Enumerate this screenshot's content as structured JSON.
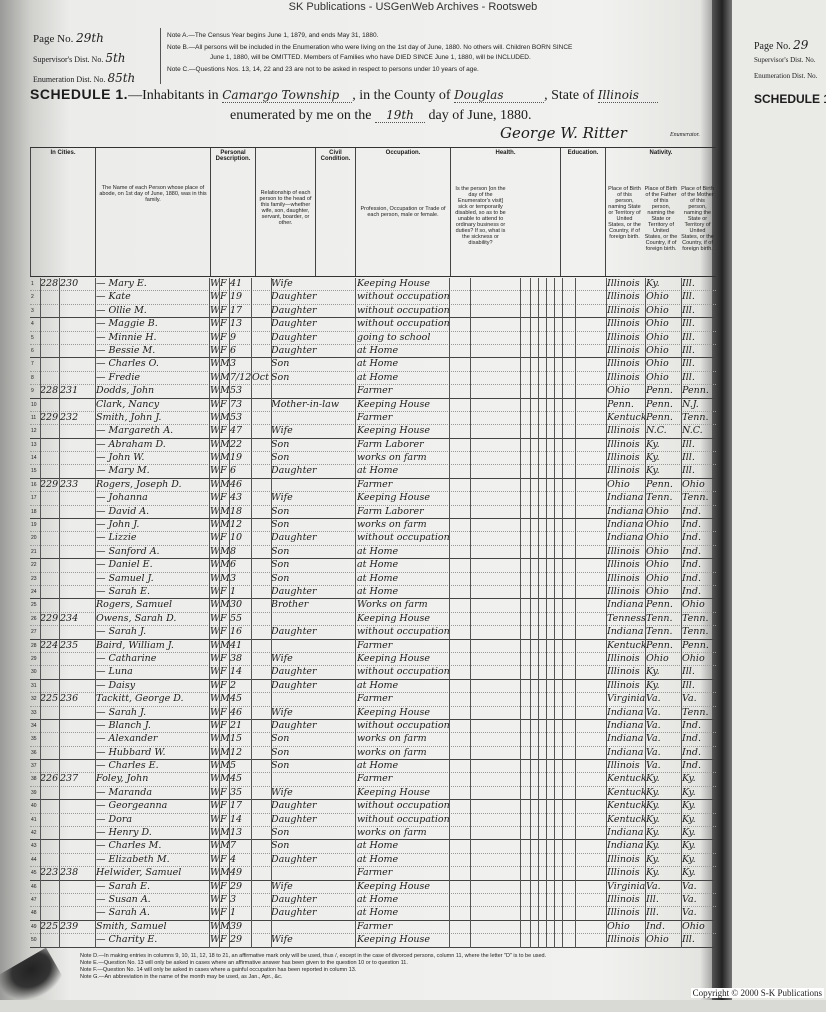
{
  "watermark": "SK Publications - USGenWeb Archives - Rootsweb",
  "header": {
    "page_label": "Page No.",
    "page_value": "29th",
    "supervisor_label": "Supervisor's Dist. No.",
    "supervisor_value": "5th",
    "enumeration_label": "Enumeration Dist. No.",
    "enumeration_value": "85th",
    "note_a": "Note A.—The Census Year begins June 1, 1879, and ends May 31, 1880.",
    "note_b1": "Note B.—All persons will be included in the Enumeration who were living on the 1st day of June, 1880. No others will. Children BORN SINCE",
    "note_b2": "June 1, 1880, will be OMITTED. Members of Families who have DIED SINCE June 1, 1880, will be INCLUDED.",
    "note_c": "Note C.—Questions Nos. 13, 14, 22 and 23 are not to be asked in respect to persons under 10 years of age.",
    "schedule": "SCHEDULE 1.",
    "inhabitants_in": "—Inhabitants in",
    "township": "Camargo Township",
    "county_label": ", in the County of",
    "county": "Douglas",
    "state_label": ", State of",
    "state": "Illinois",
    "enumerated_label": "enumerated by me on the",
    "day": "19th",
    "day_suffix": "day of June, 1880.",
    "enumerator": "George W. Ritter",
    "enumerator_label": "Enumerator."
  },
  "columns": {
    "in_cities": "In Cities.",
    "name": "The Name of each Person whose place of abode, on 1st day of June, 1880, was in this family.",
    "personal": "Personal Description.",
    "relationship": "Relationship of each person to the head of this family—whether wife, son, daughter, servant, boarder, or other.",
    "civil": "Civil Condition.",
    "occupation_group": "Occupation.",
    "occupation": "Profession, Occupation or Trade of each person, male or female.",
    "health": "Health.",
    "health_q": "Is the person [on the day of the Enumerator's visit] sick or temporarily disabled, so as to be unable to attend to ordinary business or duties? If so, what is the sickness or disability?",
    "education": "Education.",
    "nativity": "Nativity.",
    "birthplace": "Place of Birth of this person, naming State or Territory of United States, or the Country, if of foreign birth.",
    "father_birth": "Place of Birth of the Father of this person, naming the State or Territory of United States, or the Country, if of foreign birth.",
    "mother_birth": "Place of Birth of the Mother of this person, naming the State or Territory of United States, or the Country, if of foreign birth."
  },
  "rows": [
    {
      "n": "1",
      "dw": "228",
      "fam": "230",
      "name": "— Mary E.",
      "c": "W",
      "s": "F",
      "a": "41",
      "rel": "Wife",
      "occ": "Keeping House",
      "bp": "Illinois",
      "fb": "Ky.",
      "mb": "Ill."
    },
    {
      "n": "2",
      "dw": "",
      "fam": "",
      "name": "— Kate",
      "c": "W",
      "s": "F",
      "a": "19",
      "rel": "Daughter",
      "occ": "without occupation",
      "bp": "Illinois",
      "fb": "Ohio",
      "mb": "Ill."
    },
    {
      "n": "3",
      "dw": "",
      "fam": "",
      "name": "— Ollie M.",
      "c": "W",
      "s": "F",
      "a": "17",
      "rel": "Daughter",
      "occ": "without occupation",
      "bp": "Illinois",
      "fb": "Ohio",
      "mb": "Ill.",
      "g": true
    },
    {
      "n": "4",
      "dw": "",
      "fam": "",
      "name": "— Maggie B.",
      "c": "W",
      "s": "F",
      "a": "13",
      "rel": "Daughter",
      "occ": "without occupation",
      "bp": "Illinois",
      "fb": "Ohio",
      "mb": "Ill."
    },
    {
      "n": "5",
      "dw": "",
      "fam": "",
      "name": "— Minnie H.",
      "c": "W",
      "s": "F",
      "a": "9",
      "rel": "Daughter",
      "occ": "going to school",
      "bp": "Illinois",
      "fb": "Ohio",
      "mb": "Ill."
    },
    {
      "n": "6",
      "dw": "",
      "fam": "",
      "name": "— Bessie M.",
      "c": "W",
      "s": "F",
      "a": "6",
      "rel": "Daughter",
      "occ": "at Home",
      "bp": "Illinois",
      "fb": "Ohio",
      "mb": "Ill.",
      "g": true
    },
    {
      "n": "7",
      "dw": "",
      "fam": "",
      "name": "— Charles O.",
      "c": "W",
      "s": "M",
      "a": "3",
      "rel": "Son",
      "occ": "at Home",
      "bp": "Illinois",
      "fb": "Ohio",
      "mb": "Ill."
    },
    {
      "n": "8",
      "dw": "",
      "fam": "",
      "name": "— Fredie",
      "c": "W",
      "s": "M",
      "a": "7/12",
      "m": "Oct",
      "rel": "Son",
      "occ": "at Home",
      "bp": "Illinois",
      "fb": "Ohio",
      "mb": "Ill."
    },
    {
      "n": "9",
      "dw": "228",
      "fam": "231",
      "name": "Dodds, John",
      "c": "W",
      "s": "M",
      "a": "53",
      "rel": "",
      "occ": "Farmer",
      "bp": "Ohio",
      "fb": "Penn.",
      "mb": "Penn.",
      "g": true
    },
    {
      "n": "10",
      "dw": "",
      "fam": "",
      "name": "Clark, Nancy",
      "c": "W",
      "s": "F",
      "a": "73",
      "rel": "Mother-in-law",
      "occ": "Keeping House",
      "bp": "Penn.",
      "fb": "Penn.",
      "mb": "N.J."
    },
    {
      "n": "11",
      "dw": "229",
      "fam": "232",
      "name": "Smith, John J.",
      "c": "W",
      "s": "M",
      "a": "53",
      "rel": "",
      "occ": "Farmer",
      "bp": "Kentucky",
      "fb": "Penn.",
      "mb": "Tenn."
    },
    {
      "n": "12",
      "dw": "",
      "fam": "",
      "name": "— Margareth A.",
      "c": "W",
      "s": "F",
      "a": "47",
      "rel": "Wife",
      "occ": "Keeping House",
      "bp": "Illinois",
      "fb": "N.C.",
      "mb": "N.C.",
      "g": true
    },
    {
      "n": "13",
      "dw": "",
      "fam": "",
      "name": "— Abraham D.",
      "c": "W",
      "s": "M",
      "a": "22",
      "rel": "Son",
      "occ": "Farm Laborer",
      "bp": "Illinois",
      "fb": "Ky.",
      "mb": "Ill."
    },
    {
      "n": "14",
      "dw": "",
      "fam": "",
      "name": "— John W.",
      "c": "W",
      "s": "M",
      "a": "19",
      "rel": "Son",
      "occ": "works on farm",
      "bp": "Illinois",
      "fb": "Ky.",
      "mb": "Ill."
    },
    {
      "n": "15",
      "dw": "",
      "fam": "",
      "name": "— Mary M.",
      "c": "W",
      "s": "F",
      "a": "6",
      "rel": "Daughter",
      "occ": "at Home",
      "bp": "Illinois",
      "fb": "Ky.",
      "mb": "Ill.",
      "g": true
    },
    {
      "n": "16",
      "dw": "229",
      "fam": "233",
      "name": "Rogers, Joseph D.",
      "c": "W",
      "s": "M",
      "a": "46",
      "rel": "",
      "occ": "Farmer",
      "bp": "Ohio",
      "fb": "Penn.",
      "mb": "Ohio"
    },
    {
      "n": "17",
      "dw": "",
      "fam": "",
      "name": "— Johanna",
      "c": "W",
      "s": "F",
      "a": "43",
      "rel": "Wife",
      "occ": "Keeping House",
      "bp": "Indiana",
      "fb": "Tenn.",
      "mb": "Tenn."
    },
    {
      "n": "18",
      "dw": "",
      "fam": "",
      "name": "— David A.",
      "c": "W",
      "s": "M",
      "a": "18",
      "rel": "Son",
      "occ": "Farm Laborer",
      "bp": "Indiana",
      "fb": "Ohio",
      "mb": "Ind.",
      "g": true
    },
    {
      "n": "19",
      "dw": "",
      "fam": "",
      "name": "— John J.",
      "c": "W",
      "s": "M",
      "a": "12",
      "rel": "Son",
      "occ": "works on farm",
      "bp": "Indiana",
      "fb": "Ohio",
      "mb": "Ind."
    },
    {
      "n": "20",
      "dw": "",
      "fam": "",
      "name": "— Lizzie",
      "c": "W",
      "s": "F",
      "a": "10",
      "rel": "Daughter",
      "occ": "without occupation",
      "bp": "Indiana",
      "fb": "Ohio",
      "mb": "Ind."
    },
    {
      "n": "21",
      "dw": "",
      "fam": "",
      "name": "— Sanford A.",
      "c": "W",
      "s": "M",
      "a": "8",
      "rel": "Son",
      "occ": "at Home",
      "bp": "Illinois",
      "fb": "Ohio",
      "mb": "Ind.",
      "g": true
    },
    {
      "n": "22",
      "dw": "",
      "fam": "",
      "name": "— Daniel E.",
      "c": "W",
      "s": "M",
      "a": "6",
      "rel": "Son",
      "occ": "at Home",
      "bp": "Illinois",
      "fb": "Ohio",
      "mb": "Ind."
    },
    {
      "n": "23",
      "dw": "",
      "fam": "",
      "name": "— Samuel J.",
      "c": "W",
      "s": "M",
      "a": "3",
      "rel": "Son",
      "occ": "at Home",
      "bp": "Illinois",
      "fb": "Ohio",
      "mb": "Ind."
    },
    {
      "n": "24",
      "dw": "",
      "fam": "",
      "name": "— Sarah E.",
      "c": "W",
      "s": "F",
      "a": "1",
      "rel": "Daughter",
      "occ": "at Home",
      "bp": "Illinois",
      "fb": "Ohio",
      "mb": "Ind.",
      "g": true
    },
    {
      "n": "25",
      "dw": "",
      "fam": "",
      "name": "Rogers, Samuel",
      "c": "W",
      "s": "M",
      "a": "30",
      "rel": "Brother",
      "occ": "Works on farm",
      "bp": "Indiana",
      "fb": "Penn.",
      "mb": "Ohio"
    },
    {
      "n": "26",
      "dw": "229",
      "fam": "234",
      "name": "Owens, Sarah D.",
      "c": "W",
      "s": "F",
      "a": "55",
      "rel": "",
      "occ": "Keeping House",
      "bp": "Tennessee",
      "fb": "Tenn.",
      "mb": "Tenn."
    },
    {
      "n": "27",
      "dw": "",
      "fam": "",
      "name": "— Sarah J.",
      "c": "W",
      "s": "F",
      "a": "16",
      "rel": "Daughter",
      "occ": "without occupation",
      "bp": "Indiana",
      "fb": "Tenn.",
      "mb": "Tenn.",
      "g": true
    },
    {
      "n": "28",
      "dw": "224",
      "fam": "235",
      "name": "Baird, William J.",
      "c": "W",
      "s": "M",
      "a": "41",
      "rel": "",
      "occ": "Farmer",
      "bp": "Kentucky",
      "fb": "Penn.",
      "mb": "Penn."
    },
    {
      "n": "29",
      "dw": "",
      "fam": "",
      "name": "— Catharine",
      "c": "W",
      "s": "F",
      "a": "38",
      "rel": "Wife",
      "occ": "Keeping House",
      "bp": "Illinois",
      "fb": "Ohio",
      "mb": "Ohio"
    },
    {
      "n": "30",
      "dw": "",
      "fam": "",
      "name": "— Luna",
      "c": "W",
      "s": "F",
      "a": "14",
      "rel": "Daughter",
      "occ": "without occupation",
      "bp": "Illinois",
      "fb": "Ky.",
      "mb": "Ill.",
      "g": true
    },
    {
      "n": "31",
      "dw": "",
      "fam": "",
      "name": "— Daisy",
      "c": "W",
      "s": "F",
      "a": "2",
      "rel": "Daughter",
      "occ": "at Home",
      "bp": "Illinois",
      "fb": "Ky.",
      "mb": "Ill."
    },
    {
      "n": "32",
      "dw": "225",
      "fam": "236",
      "name": "Tackitt, George D.",
      "c": "W",
      "s": "M",
      "a": "45",
      "rel": "",
      "occ": "Farmer",
      "bp": "Virginia",
      "fb": "Va.",
      "mb": "Va."
    },
    {
      "n": "33",
      "dw": "",
      "fam": "",
      "name": "— Sarah J.",
      "c": "W",
      "s": "F",
      "a": "46",
      "rel": "Wife",
      "occ": "Keeping House",
      "bp": "Indiana",
      "fb": "Va.",
      "mb": "Tenn.",
      "g": true
    },
    {
      "n": "34",
      "dw": "",
      "fam": "",
      "name": "— Blanch J.",
      "c": "W",
      "s": "F",
      "a": "21",
      "rel": "Daughter",
      "occ": "without occupation",
      "bp": "Indiana",
      "fb": "Va.",
      "mb": "Ind."
    },
    {
      "n": "35",
      "dw": "",
      "fam": "",
      "name": "— Alexander",
      "c": "W",
      "s": "M",
      "a": "15",
      "rel": "Son",
      "occ": "works on farm",
      "bp": "Indiana",
      "fb": "Va.",
      "mb": "Ind."
    },
    {
      "n": "36",
      "dw": "",
      "fam": "",
      "name": "— Hubbard W.",
      "c": "W",
      "s": "M",
      "a": "12",
      "rel": "Son",
      "occ": "works on farm",
      "bp": "Indiana",
      "fb": "Va.",
      "mb": "Ind.",
      "g": true
    },
    {
      "n": "37",
      "dw": "",
      "fam": "",
      "name": "— Charles E.",
      "c": "W",
      "s": "M",
      "a": "5",
      "rel": "Son",
      "occ": "at Home",
      "bp": "Illinois",
      "fb": "Va.",
      "mb": "Ind."
    },
    {
      "n": "38",
      "dw": "226",
      "fam": "237",
      "name": "Foley, John",
      "c": "W",
      "s": "M",
      "a": "45",
      "rel": "",
      "occ": "Farmer",
      "bp": "Kentucky",
      "fb": "Ky.",
      "mb": "Ky."
    },
    {
      "n": "39",
      "dw": "",
      "fam": "",
      "name": "— Maranda",
      "c": "W",
      "s": "F",
      "a": "35",
      "rel": "Wife",
      "occ": "Keeping House",
      "bp": "Kentucky",
      "fb": "Ky.",
      "mb": "Ky.",
      "g": true
    },
    {
      "n": "40",
      "dw": "",
      "fam": "",
      "name": "— Georgeanna",
      "c": "W",
      "s": "F",
      "a": "17",
      "rel": "Daughter",
      "occ": "without occupation",
      "bp": "Kentucky",
      "fb": "Ky.",
      "mb": "Ky."
    },
    {
      "n": "41",
      "dw": "",
      "fam": "",
      "name": "— Dora",
      "c": "W",
      "s": "F",
      "a": "14",
      "rel": "Daughter",
      "occ": "without occupation",
      "bp": "Kentucky",
      "fb": "Ky.",
      "mb": "Ky."
    },
    {
      "n": "42",
      "dw": "",
      "fam": "",
      "name": "— Henry D.",
      "c": "W",
      "s": "M",
      "a": "13",
      "rel": "Son",
      "occ": "works on farm",
      "bp": "Indiana",
      "fb": "Ky.",
      "mb": "Ky.",
      "g": true
    },
    {
      "n": "43",
      "dw": "",
      "fam": "",
      "name": "— Charles M.",
      "c": "W",
      "s": "M",
      "a": "7",
      "rel": "Son",
      "occ": "at Home",
      "bp": "Indiana",
      "fb": "Ky.",
      "mb": "Ky."
    },
    {
      "n": "44",
      "dw": "",
      "fam": "",
      "name": "— Elizabeth M.",
      "c": "W",
      "s": "F",
      "a": "4",
      "rel": "Daughter",
      "occ": "at Home",
      "bp": "Illinois",
      "fb": "Ky.",
      "mb": "Ky."
    },
    {
      "n": "45",
      "dw": "223",
      "fam": "238",
      "name": "Helwider, Samuel",
      "c": "W",
      "s": "M",
      "a": "49",
      "rel": "",
      "occ": "Farmer",
      "bp": "Illinois",
      "fb": "Ky.",
      "mb": "Ky.",
      "g": true
    },
    {
      "n": "46",
      "dw": "",
      "fam": "",
      "name": "— Sarah E.",
      "c": "W",
      "s": "F",
      "a": "29",
      "rel": "Wife",
      "occ": "Keeping House",
      "bp": "Virginia",
      "fb": "Va.",
      "mb": "Va."
    },
    {
      "n": "47",
      "dw": "",
      "fam": "",
      "name": "— Susan A.",
      "c": "W",
      "s": "F",
      "a": "3",
      "rel": "Daughter",
      "occ": "at Home",
      "bp": "Illinois",
      "fb": "Ill.",
      "mb": "Va."
    },
    {
      "n": "48",
      "dw": "",
      "fam": "",
      "name": "— Sarah A.",
      "c": "W",
      "s": "F",
      "a": "1",
      "rel": "Daughter",
      "occ": "at Home",
      "bp": "Illinois",
      "fb": "Ill.",
      "mb": "Va.",
      "g": true
    },
    {
      "n": "49",
      "dw": "225",
      "fam": "239",
      "name": "Smith, Samuel",
      "c": "W",
      "s": "M",
      "a": "39",
      "rel": "",
      "occ": "Farmer",
      "bp": "Ohio",
      "fb": "Ind.",
      "mb": "Ohio"
    },
    {
      "n": "50",
      "dw": "",
      "fam": "",
      "name": "— Charity E.",
      "c": "W",
      "s": "F",
      "a": "29",
      "rel": "Wife",
      "occ": "Keeping House",
      "bp": "Illinois",
      "fb": "Ohio",
      "mb": "Ill.",
      "g": true
    }
  ],
  "footer": {
    "note_d": "Note D.—In making entries in columns 9, 10, 11, 12, 18 to 21, an affirmative mark only will be used, thus /, except in the case of divorced persons, column 11, where the letter \"D\" is to be used.",
    "note_e": "Note E.—Question No. 13 will only be asked in cases where an affirmative answer has been given to the question 10 or to question 11.",
    "note_f": "Note F.—Question No. 14 will only be asked in cases where a gainful occupation has been reported in column 13.",
    "note_g": "Note G.—An abbreviation in the name of the month may be used, as Jan., Apr., &c."
  },
  "right_page": {
    "page_label": "Page No.",
    "page_value": "29",
    "supervisor_label": "Supervisor's Dist. No.",
    "enumeration_label": "Enumeration Dist. No.",
    "schedule": "SCHEDULE 1.—"
  },
  "copyright": "Copyright © 2000 S-K Publications"
}
